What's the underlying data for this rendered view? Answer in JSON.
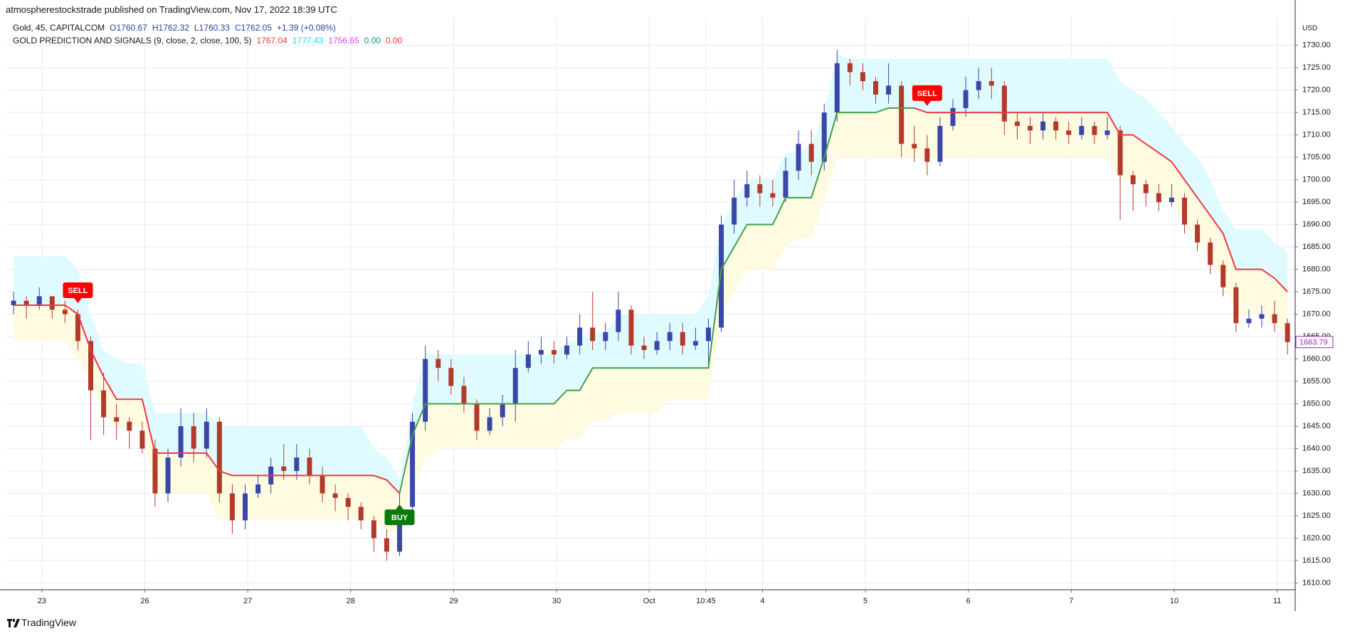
{
  "header": {
    "publisher": "atmospherestockstrade published on TradingView.com, Nov 17, 2022 18:39 UTC"
  },
  "legend": {
    "symbol": "Gold, 45, CAPITALCOM",
    "fields": [
      {
        "text": "O1760.67",
        "color": "#2a3f9e"
      },
      {
        "text": "H1762.32",
        "color": "#2a3f9e"
      },
      {
        "text": "L1760.33",
        "color": "#2a3f9e"
      },
      {
        "text": "C1762.05",
        "color": "#2a3f9e"
      },
      {
        "text": "+1.39 (+0.08%)",
        "color": "#2a3f9e"
      }
    ],
    "indicator": "GOLD PREDICTION AND SIGNALS (9, close, 2, close, 100, 5)",
    "indicator_values": [
      {
        "text": "1767.04",
        "color": "#f23645"
      },
      {
        "text": "1777.43",
        "color": "#00e5ff"
      },
      {
        "text": "1756.65",
        "color": "#e040fb"
      },
      {
        "text": "0.00",
        "color": "#089981"
      },
      {
        "text": "0.00",
        "color": "#f23645"
      }
    ]
  },
  "footer": {
    "brand": "TradingView"
  },
  "chart_data": {
    "type": "candlestick",
    "currency": "USD",
    "up_color": "#3a46a8",
    "down_color": "#b23a2a",
    "grid": true,
    "xlim": [
      -0.5,
      99.6
    ],
    "xticks": [
      {
        "value": 2.2,
        "label": "23"
      },
      {
        "value": 10.2,
        "label": "26"
      },
      {
        "value": 18.2,
        "label": "27"
      },
      {
        "value": 26.2,
        "label": "28"
      },
      {
        "value": 34.2,
        "label": "29"
      },
      {
        "value": 42.2,
        "label": "30"
      },
      {
        "value": 49.4,
        "label": "Oct"
      },
      {
        "value": 53.8,
        "label": "10:45"
      },
      {
        "value": 58.2,
        "label": "4"
      },
      {
        "value": 66.2,
        "label": "5"
      },
      {
        "value": 74.2,
        "label": "6"
      },
      {
        "value": 82.2,
        "label": "7"
      },
      {
        "value": 90.2,
        "label": "10"
      },
      {
        "value": 98.2,
        "label": "11"
      }
    ],
    "ylim": [
      1608.5,
      1736.3
    ],
    "yticks": [
      {
        "value": 1610,
        "label": "1610.00"
      },
      {
        "value": 1615,
        "label": "1615.00"
      },
      {
        "value": 1620,
        "label": "1620.00"
      },
      {
        "value": 1625,
        "label": "1625.00"
      },
      {
        "value": 1630,
        "label": "1630.00"
      },
      {
        "value": 1635,
        "label": "1635.00"
      },
      {
        "value": 1640,
        "label": "1640.00"
      },
      {
        "value": 1645,
        "label": "1645.00"
      },
      {
        "value": 1650,
        "label": "1650.00"
      },
      {
        "value": 1655,
        "label": "1655.00"
      },
      {
        "value": 1660,
        "label": "1660.00"
      },
      {
        "value": 1665,
        "label": "1665.00"
      },
      {
        "value": 1670,
        "label": "1670.00"
      },
      {
        "value": 1675,
        "label": "1675.00"
      },
      {
        "value": 1680,
        "label": "1680.00"
      },
      {
        "value": 1685,
        "label": "1685.00"
      },
      {
        "value": 1690,
        "label": "1690.00"
      },
      {
        "value": 1695,
        "label": "1695.00"
      },
      {
        "value": 1700,
        "label": "1700.00"
      },
      {
        "value": 1705,
        "label": "1705.00"
      },
      {
        "value": 1710,
        "label": "1710.00"
      },
      {
        "value": 1715,
        "label": "1715.00"
      },
      {
        "value": 1720,
        "label": "1720.00"
      },
      {
        "value": 1725,
        "label": "1725.00"
      },
      {
        "value": 1730,
        "label": "1730.00"
      }
    ],
    "open": [
      1672,
      1673,
      1672,
      1674,
      1671,
      1670,
      1664,
      1653,
      1647,
      1646,
      1644,
      1640,
      1630,
      1638,
      1645,
      1640,
      1646,
      1630,
      1624,
      1630,
      1632,
      1636,
      1635,
      1638,
      1634,
      1630,
      1629,
      1627,
      1624,
      1620,
      1617,
      1627,
      1646,
      1660,
      1658,
      1654,
      1650,
      1644,
      1647,
      1650,
      1658,
      1661,
      1662,
      1661,
      1663,
      1667,
      1664,
      1666,
      1671,
      1663,
      1662,
      1664,
      1666,
      1663,
      1664,
      1667,
      1690,
      1696,
      1699,
      1697,
      1696,
      1702,
      1708,
      1704,
      1715,
      1726,
      1724,
      1722,
      1719,
      1721,
      1708,
      1707,
      1704,
      1712,
      1716,
      1720,
      1722,
      1721,
      1713,
      1712,
      1711,
      1713,
      1711,
      1710,
      1712,
      1710,
      1711,
      1701,
      1699,
      1697,
      1695,
      1696,
      1690,
      1686,
      1681,
      1676,
      1668,
      1669,
      1670,
      1668
    ],
    "high": [
      1675,
      1674,
      1676,
      1674,
      1673,
      1671,
      1665,
      1657,
      1650,
      1647,
      1646,
      1642,
      1640,
      1649,
      1648,
      1649,
      1647,
      1632,
      1632,
      1634,
      1638,
      1641,
      1641,
      1640,
      1636,
      1632,
      1630,
      1628,
      1625,
      1622,
      1630,
      1648,
      1663,
      1662,
      1660,
      1656,
      1651,
      1649,
      1652,
      1662,
      1664,
      1665,
      1664,
      1665,
      1670,
      1675,
      1668,
      1675,
      1672,
      1665,
      1666,
      1668,
      1668,
      1667,
      1669,
      1692,
      1700,
      1702,
      1701,
      1700,
      1705,
      1711,
      1711,
      1717,
      1729,
      1727,
      1726,
      1723,
      1726,
      1722,
      1712,
      1710,
      1714,
      1718,
      1723,
      1725,
      1725,
      1722,
      1715,
      1714,
      1715,
      1714,
      1713,
      1714,
      1713,
      1714,
      1712,
      1702,
      1700,
      1699,
      1699,
      1697,
      1691,
      1687,
      1682,
      1677,
      1671,
      1672,
      1673,
      1669
    ],
    "low": [
      1670,
      1669,
      1671,
      1669,
      1668,
      1662,
      1642,
      1643,
      1642,
      1640,
      1639,
      1627,
      1628,
      1636,
      1637,
      1638,
      1628,
      1621,
      1622,
      1629,
      1630,
      1633,
      1633,
      1632,
      1628,
      1626,
      1624,
      1622,
      1617,
      1615,
      1616,
      1625,
      1644,
      1655,
      1652,
      1648,
      1642,
      1643,
      1645,
      1646,
      1657,
      1659,
      1659,
      1660,
      1661,
      1662,
      1662,
      1664,
      1661,
      1660,
      1661,
      1662,
      1661,
      1662,
      1659,
      1666,
      1688,
      1694,
      1694,
      1694,
      1695,
      1700,
      1701,
      1702,
      1713,
      1721,
      1720,
      1717,
      1717,
      1705,
      1704,
      1701,
      1703,
      1711,
      1714,
      1718,
      1718,
      1710,
      1709,
      1708,
      1709,
      1709,
      1708,
      1709,
      1708,
      1709,
      1691,
      1693,
      1694,
      1693,
      1694,
      1688,
      1684,
      1679,
      1674,
      1666,
      1667,
      1667,
      1666,
      1661
    ],
    "close": [
      1673,
      1672,
      1674,
      1671,
      1670,
      1664,
      1653,
      1647,
      1646,
      1644,
      1640,
      1630,
      1638,
      1645,
      1640,
      1646,
      1630,
      1624,
      1630,
      1632,
      1636,
      1635,
      1638,
      1634,
      1630,
      1629,
      1627,
      1624,
      1620,
      1617,
      1627,
      1646,
      1660,
      1658,
      1654,
      1650,
      1644,
      1647,
      1650,
      1658,
      1661,
      1662,
      1661,
      1663,
      1667,
      1664,
      1666,
      1671,
      1663,
      1662,
      1664,
      1666,
      1663,
      1664,
      1667,
      1690,
      1696,
      1699,
      1697,
      1696,
      1702,
      1708,
      1704,
      1715,
      1726,
      1724,
      1722,
      1719,
      1721,
      1708,
      1707,
      1704,
      1712,
      1716,
      1720,
      1722,
      1721,
      1713,
      1712,
      1711,
      1713,
      1711,
      1710,
      1712,
      1710,
      1711,
      1701,
      1699,
      1697,
      1695,
      1696,
      1690,
      1686,
      1681,
      1676,
      1668,
      1669,
      1670,
      1668,
      1663.79
    ],
    "last_price_color": "#9c27b0",
    "series": [
      {
        "color": "#f23645",
        "values": [
          1672,
          1672,
          1672,
          1672,
          1672,
          1670,
          1662,
          1656,
          1651,
          1651,
          1651,
          1639,
          1639,
          1639,
          1639,
          1639,
          1635,
          1634,
          1634,
          1634,
          1634,
          1634,
          1634,
          1634,
          1634,
          1634,
          1634,
          1634,
          1634,
          1633,
          1630,
          null,
          null,
          null,
          null,
          null,
          null,
          null,
          null,
          null,
          null,
          null,
          null,
          null,
          null,
          null,
          null,
          null,
          null,
          null,
          null,
          null,
          null,
          null,
          null,
          null,
          null,
          null,
          null,
          null,
          null,
          null,
          null,
          null,
          null,
          null,
          null,
          null,
          null,
          null,
          1716,
          1715,
          1715,
          1715,
          1715,
          1715,
          1715,
          1715,
          1715,
          1715,
          1715,
          1715,
          1715,
          1715,
          1715,
          1715,
          1710,
          1710,
          1708,
          1706,
          1704,
          1700,
          1696,
          1692,
          1688,
          1680,
          1680,
          1680,
          1678,
          1675
        ]
      },
      {
        "color": "#43a047",
        "values": [
          null,
          null,
          null,
          null,
          null,
          null,
          null,
          null,
          null,
          null,
          null,
          null,
          null,
          null,
          null,
          null,
          null,
          null,
          null,
          null,
          null,
          null,
          null,
          null,
          null,
          null,
          null,
          null,
          null,
          null,
          1630,
          1643,
          1650,
          1650,
          1650,
          1650,
          1650,
          1650,
          1650,
          1650,
          1650,
          1650,
          1650,
          1653,
          1653,
          1658,
          1658,
          1658,
          1658,
          1658,
          1658,
          1658,
          1658,
          1658,
          1658,
          1680,
          1685,
          1690,
          1690,
          1690,
          1696,
          1696,
          1696,
          1705,
          1715,
          1715,
          1715,
          1715,
          1716,
          1716,
          1716,
          null,
          null,
          null,
          null,
          null,
          null,
          null,
          null,
          null,
          null,
          null,
          null,
          null,
          null,
          null,
          null,
          null,
          null,
          null,
          null,
          null,
          null,
          null,
          null,
          null,
          null,
          null,
          null,
          null
        ]
      }
    ],
    "bands": {
      "upper_color": "#e0fbff",
      "lower_color": "#fffbe0",
      "upper": [
        1683,
        1683,
        1683,
        1683,
        1683,
        1680,
        1670,
        1662,
        1660,
        1659,
        1659,
        1648,
        1648,
        1648,
        1648,
        1648,
        1645,
        1645,
        1645,
        1645,
        1645,
        1645,
        1645,
        1645,
        1645,
        1645,
        1645,
        1645,
        1640,
        1638,
        1633,
        1650,
        1661,
        1661,
        1661,
        1661,
        1661,
        1661,
        1661,
        1661,
        1661,
        1661,
        1661,
        1664,
        1664,
        1666,
        1666,
        1670,
        1670,
        1670,
        1670,
        1670,
        1670,
        1670,
        1674,
        1690,
        1695,
        1700,
        1700,
        1700,
        1706,
        1706,
        1708,
        1715,
        1728,
        1727,
        1727,
        1727,
        1727,
        1727,
        1727,
        1727,
        1727,
        1727,
        1727,
        1727,
        1727,
        1727,
        1727,
        1727,
        1727,
        1727,
        1727,
        1727,
        1727,
        1727,
        1722,
        1720,
        1718,
        1715,
        1712,
        1708,
        1705,
        1700,
        1693,
        1689,
        1689,
        1689,
        1686,
        1684
      ],
      "lower": [
        1664,
        1664,
        1664,
        1664,
        1664,
        1660,
        1655,
        1648,
        1645,
        1645,
        1645,
        1630,
        1630,
        1630,
        1630,
        1630,
        1624,
        1624,
        1624,
        1624,
        1624,
        1624,
        1624,
        1624,
        1624,
        1624,
        1624,
        1624,
        1624,
        1622,
        1621,
        1631,
        1638,
        1640,
        1640,
        1640,
        1640,
        1640,
        1640,
        1640,
        1640,
        1640,
        1640,
        1642,
        1642,
        1646,
        1646,
        1648,
        1648,
        1648,
        1648,
        1651,
        1651,
        1651,
        1651,
        1670,
        1675,
        1680,
        1680,
        1680,
        1685,
        1687,
        1687,
        1695,
        1705,
        1705,
        1705,
        1705,
        1705,
        1705,
        1705,
        1705,
        1705,
        1705,
        1705,
        1705,
        1705,
        1705,
        1705,
        1705,
        1705,
        1705,
        1705,
        1705,
        1705,
        1705,
        1700,
        1700,
        1698,
        1696,
        1695,
        1690,
        1687,
        1682,
        1678,
        1670,
        1670,
        1670,
        1668,
        1665
      ]
    },
    "signals": [
      {
        "label": "SELL",
        "x": 5,
        "y": 1672,
        "color": "#ff0000",
        "position": "above"
      },
      {
        "label": "BUY",
        "x": 30,
        "y": 1628,
        "color": "#0a7a0a",
        "position": "below"
      },
      {
        "label": "SELL",
        "x": 71,
        "y": 1716,
        "color": "#ff0000",
        "position": "above"
      }
    ]
  }
}
